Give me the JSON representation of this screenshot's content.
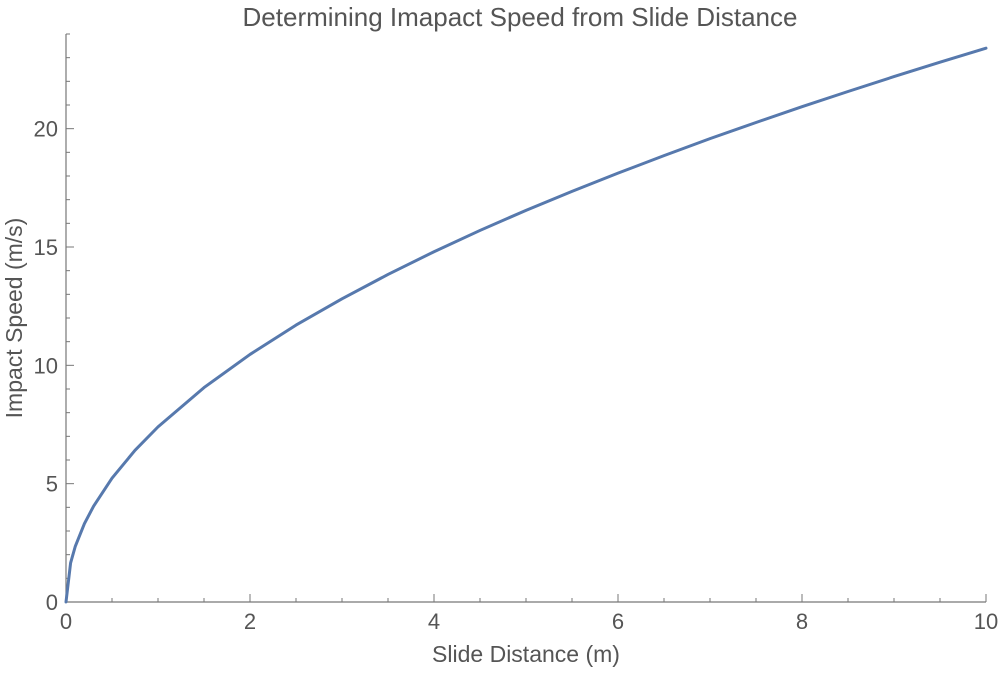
{
  "chart_data": {
    "type": "line",
    "title": "Determining Imapact Speed from Slide Distance",
    "xlabel": "Slide Distance (m)",
    "ylabel": "Impact Speed (m/s)",
    "xlim": [
      0,
      10
    ],
    "ylim": [
      0,
      24
    ],
    "x_ticks": [
      0,
      2,
      4,
      6,
      8,
      10
    ],
    "y_ticks": [
      0,
      5,
      10,
      15,
      20
    ],
    "x_tick_labels": [
      "0",
      "2",
      "4",
      "6",
      "8",
      "10"
    ],
    "y_tick_labels": [
      "0",
      "5",
      "10",
      "15",
      "20"
    ],
    "grid": false,
    "legend": "none",
    "series": [
      {
        "color": "#5779ad",
        "x": [
          0,
          0.05,
          0.1,
          0.2,
          0.3,
          0.5,
          0.75,
          1,
          1.5,
          2,
          2.5,
          3,
          3.5,
          4,
          4.5,
          5,
          5.5,
          6,
          6.5,
          7,
          7.5,
          8,
          8.5,
          9,
          9.5,
          10
        ],
        "y": [
          0,
          1.65,
          2.34,
          3.31,
          4.05,
          5.23,
          6.41,
          7.4,
          9.06,
          10.46,
          11.7,
          12.81,
          13.84,
          14.8,
          15.7,
          16.55,
          17.35,
          18.12,
          18.86,
          19.58,
          20.26,
          20.93,
          21.57,
          22.2,
          22.81,
          23.4
        ]
      }
    ]
  },
  "colors": {
    "axis": "#777777",
    "text": "#555555",
    "title": "#555555",
    "line": "#5779ad"
  }
}
